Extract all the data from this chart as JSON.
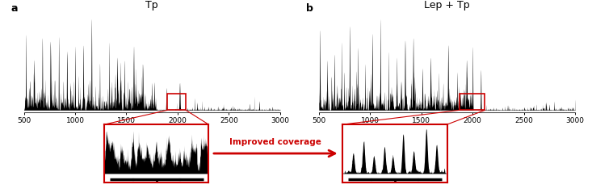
{
  "title_a": "Tp",
  "title_b": "Lep + Tp",
  "label_a": "a",
  "label_b": "b",
  "xmin": 500,
  "xmax": 3000,
  "xlabel_ticks": [
    500,
    1000,
    1500,
    2000,
    2500,
    3000
  ],
  "highlight_region_a": [
    1900,
    2080
  ],
  "highlight_region_b": [
    1870,
    2120
  ],
  "inset_text": "Improved coverage",
  "bg_color": "#ffffff",
  "highlight_box_color": "#cc0000",
  "arrow_color": "#cc0000"
}
